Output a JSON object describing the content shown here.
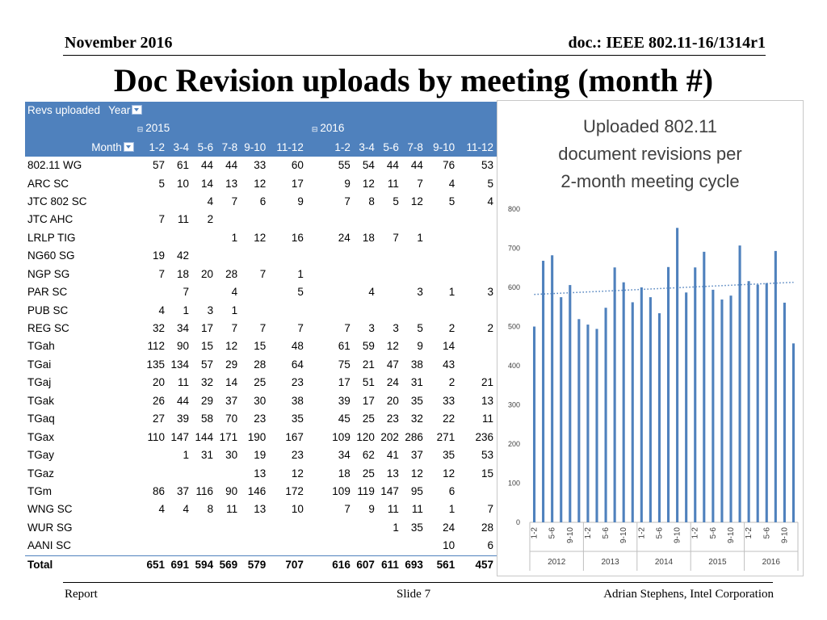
{
  "header": {
    "date": "November 2016",
    "doc": "doc.: IEEE 802.11-16/1314r1"
  },
  "title": "Doc Revision uploads by meeting (month #)",
  "footer": {
    "left": "Report",
    "center": "Slide 7",
    "right": "Adrian Stephens, Intel Corporation"
  },
  "pivot": {
    "corner_label": "Revs uploaded",
    "year_label": "Year",
    "row_field_label": "Month",
    "years": [
      {
        "label": "2015",
        "collapse_icon": "⊟"
      },
      {
        "label": "2016",
        "collapse_icon": "⊟"
      }
    ],
    "months": [
      "1-2",
      "3-4",
      "5-6",
      "7-8",
      "9-10",
      "11-12",
      "1-2",
      "3-4",
      "5-6",
      "7-8",
      "9-10",
      "11-12"
    ],
    "rows": [
      {
        "label": "802.11 WG",
        "values": [
          "57",
          "61",
          "44",
          "44",
          "33",
          "60",
          "55",
          "54",
          "44",
          "44",
          "76",
          "53"
        ]
      },
      {
        "label": "ARC SC",
        "values": [
          "5",
          "10",
          "14",
          "13",
          "12",
          "17",
          "9",
          "12",
          "11",
          "7",
          "4",
          "5"
        ]
      },
      {
        "label": "JTC 802 SC",
        "values": [
          "",
          "",
          "4",
          "7",
          "6",
          "9",
          "7",
          "8",
          "5",
          "12",
          "5",
          "4"
        ]
      },
      {
        "label": "JTC AHC",
        "values": [
          "7",
          "11",
          "2",
          "",
          "",
          "",
          "",
          "",
          "",
          "",
          "",
          ""
        ]
      },
      {
        "label": "LRLP TIG",
        "values": [
          "",
          "",
          "",
          "1",
          "12",
          "16",
          "24",
          "18",
          "7",
          "1",
          "",
          ""
        ]
      },
      {
        "label": "NG60 SG",
        "values": [
          "19",
          "42",
          "",
          "",
          "",
          "",
          "",
          "",
          "",
          "",
          "",
          ""
        ]
      },
      {
        "label": "NGP SG",
        "values": [
          "7",
          "18",
          "20",
          "28",
          "7",
          "1",
          "",
          "",
          "",
          "",
          "",
          ""
        ]
      },
      {
        "label": "PAR SC",
        "values": [
          "",
          "7",
          "",
          "4",
          "",
          "5",
          "",
          "4",
          "",
          "3",
          "1",
          "3"
        ]
      },
      {
        "label": "PUB SC",
        "values": [
          "4",
          "1",
          "3",
          "1",
          "",
          "",
          "",
          "",
          "",
          "",
          "",
          ""
        ]
      },
      {
        "label": "REG SC",
        "values": [
          "32",
          "34",
          "17",
          "7",
          "7",
          "7",
          "7",
          "3",
          "3",
          "5",
          "2",
          "2"
        ]
      },
      {
        "label": "TGah",
        "values": [
          "112",
          "90",
          "15",
          "12",
          "15",
          "48",
          "61",
          "59",
          "12",
          "9",
          "14",
          ""
        ]
      },
      {
        "label": "TGai",
        "values": [
          "135",
          "134",
          "57",
          "29",
          "28",
          "64",
          "75",
          "21",
          "47",
          "38",
          "43",
          ""
        ]
      },
      {
        "label": "TGaj",
        "values": [
          "20",
          "11",
          "32",
          "14",
          "25",
          "23",
          "17",
          "51",
          "24",
          "31",
          "2",
          "21"
        ]
      },
      {
        "label": "TGak",
        "values": [
          "26",
          "44",
          "29",
          "37",
          "30",
          "38",
          "39",
          "17",
          "20",
          "35",
          "33",
          "13"
        ]
      },
      {
        "label": "TGaq",
        "values": [
          "27",
          "39",
          "58",
          "70",
          "23",
          "35",
          "45",
          "25",
          "23",
          "32",
          "22",
          "11"
        ]
      },
      {
        "label": "TGax",
        "values": [
          "110",
          "147",
          "144",
          "171",
          "190",
          "167",
          "109",
          "120",
          "202",
          "286",
          "271",
          "236"
        ]
      },
      {
        "label": "TGay",
        "values": [
          "",
          "1",
          "31",
          "30",
          "19",
          "23",
          "34",
          "62",
          "41",
          "37",
          "35",
          "53"
        ]
      },
      {
        "label": "TGaz",
        "values": [
          "",
          "",
          "",
          "",
          "13",
          "12",
          "18",
          "25",
          "13",
          "12",
          "12",
          "15"
        ]
      },
      {
        "label": "TGm",
        "values": [
          "86",
          "37",
          "116",
          "90",
          "146",
          "172",
          "109",
          "119",
          "147",
          "95",
          "6",
          ""
        ]
      },
      {
        "label": "WNG SC",
        "values": [
          "4",
          "4",
          "8",
          "11",
          "13",
          "10",
          "7",
          "9",
          "11",
          "11",
          "1",
          "7"
        ]
      },
      {
        "label": "WUR SG",
        "values": [
          "",
          "",
          "",
          "",
          "",
          "",
          "",
          "",
          "1",
          "35",
          "24",
          "28"
        ]
      },
      {
        "label": "AANI SC",
        "values": [
          "",
          "",
          "",
          "",
          "",
          "",
          "",
          "",
          "",
          "",
          "10",
          "6"
        ]
      }
    ],
    "total": {
      "label": "Total",
      "values": [
        "651",
        "691",
        "594",
        "569",
        "579",
        "707",
        "616",
        "607",
        "611",
        "693",
        "561",
        "457"
      ]
    },
    "colors": {
      "header_bg": "#4f81bd",
      "header_text": "#ffffff"
    }
  },
  "chart_data": {
    "type": "bar",
    "title": "Uploaded 802.11 document revisions per 2-month meeting cycle",
    "years": [
      "2012",
      "2013",
      "2014",
      "2015",
      "2016"
    ],
    "categories": [
      "1-2",
      "3-4",
      "5-6",
      "7-8",
      "9-10",
      "11-12",
      "1-2",
      "3-4",
      "5-6",
      "7-8",
      "9-10",
      "11-12",
      "1-2",
      "3-4",
      "5-6",
      "7-8",
      "9-10",
      "11-12",
      "1-2",
      "3-4",
      "5-6",
      "7-8",
      "9-10",
      "11-12",
      "1-2",
      "3-4",
      "5-6",
      "7-8",
      "9-10",
      "11-12"
    ],
    "category_years": [
      "2012",
      "2012",
      "2012",
      "2012",
      "2012",
      "2012",
      "2013",
      "2013",
      "2013",
      "2013",
      "2013",
      "2013",
      "2014",
      "2014",
      "2014",
      "2014",
      "2014",
      "2014",
      "2015",
      "2015",
      "2015",
      "2015",
      "2015",
      "2015",
      "2016",
      "2016",
      "2016",
      "2016",
      "2016",
      "2016"
    ],
    "shown_tick_labels": [
      "1-2",
      "5-6",
      "9-10",
      "1-2",
      "5-6",
      "9-10",
      "1-2",
      "5-6",
      "9-10",
      "1-2",
      "5-6",
      "9-10",
      "1-2",
      "5-6",
      "9-10"
    ],
    "values": [
      500,
      668,
      682,
      575,
      606,
      519,
      505,
      494,
      548,
      651,
      613,
      562,
      600,
      575,
      534,
      652,
      752,
      587,
      651,
      691,
      594,
      569,
      579,
      707,
      616,
      607,
      611,
      693,
      561,
      457
    ],
    "ylim": [
      0,
      800
    ],
    "yticks": [
      0,
      100,
      200,
      300,
      400,
      500,
      600,
      700,
      800
    ],
    "trendline": {
      "type": "linear",
      "style": "dotted",
      "start": 582,
      "end": 613
    },
    "bar_color": "#4f81bd",
    "trend_color": "#4f81bd",
    "grid": false
  }
}
